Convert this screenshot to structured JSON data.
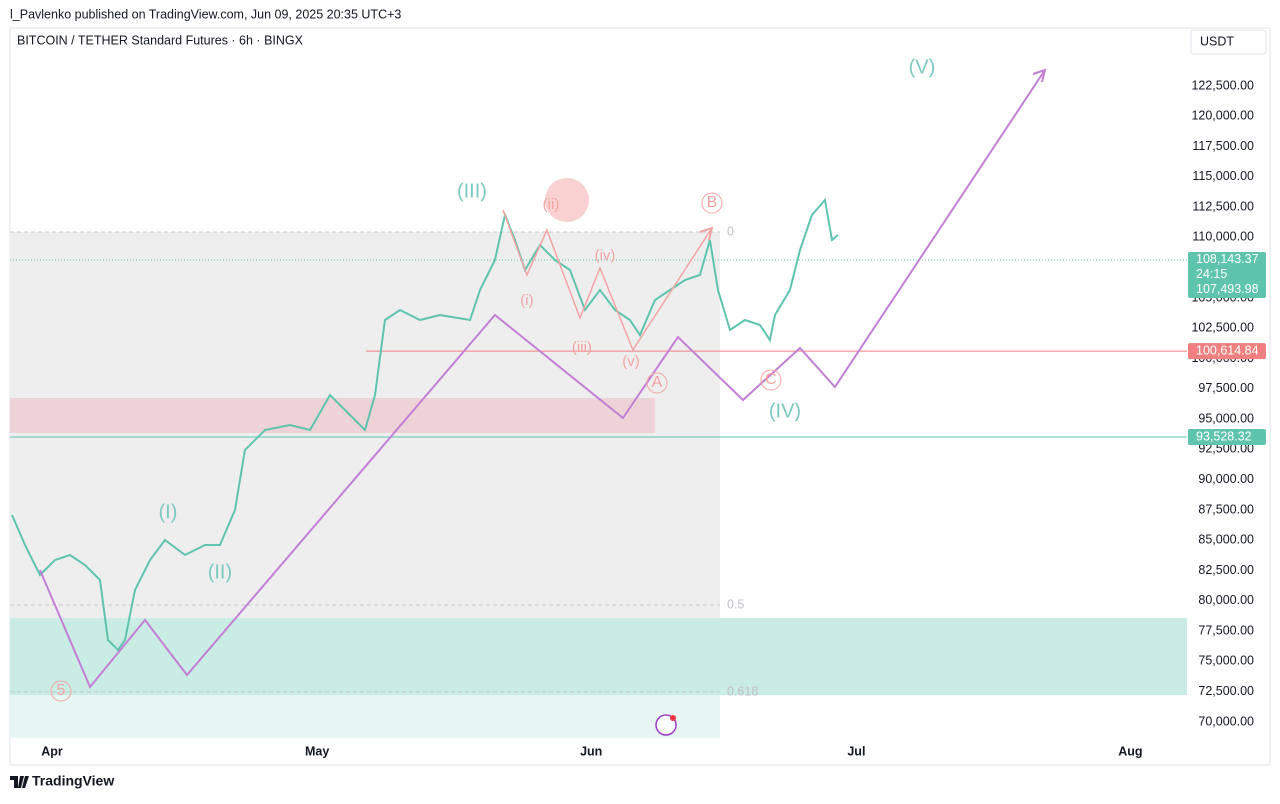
{
  "header": {
    "publisher": "l_Pavlenko published on TradingView.com, Jun 09, 2025 20:35 UTC+3",
    "footer": "TradingView"
  },
  "chart_data": {
    "type": "line",
    "title": "BITCOIN / TETHER Standard Futures · 6h · BINGX",
    "y_unit": "USDT",
    "xlim": [
      -4.75,
      128.4
    ],
    "ylim": [
      68680,
      127290
    ],
    "xticks": [
      {
        "value": 0,
        "label": "Apr"
      },
      {
        "value": 30,
        "label": "May"
      },
      {
        "value": 61,
        "label": "Jun"
      },
      {
        "value": 91,
        "label": "Jul"
      },
      {
        "value": 122,
        "label": "Aug"
      }
    ],
    "yticks": [
      {
        "value": 70000,
        "label": "70,000.00"
      },
      {
        "value": 72500,
        "label": "72,500.00"
      },
      {
        "value": 75000,
        "label": "75,000.00"
      },
      {
        "value": 77500,
        "label": "77,500.00"
      },
      {
        "value": 80000,
        "label": "80,000.00"
      },
      {
        "value": 82500,
        "label": "82,500.00"
      },
      {
        "value": 85000,
        "label": "85,000.00"
      },
      {
        "value": 87500,
        "label": "87,500.00"
      },
      {
        "value": 90000,
        "label": "90,000.00"
      },
      {
        "value": 92500,
        "label": "92,500.00"
      },
      {
        "value": 95000,
        "label": "95,000.00"
      },
      {
        "value": 97500,
        "label": "97,500.00"
      },
      {
        "value": 100000,
        "label": "100,000.00"
      },
      {
        "value": 102500,
        "label": "102,500.00"
      },
      {
        "value": 105000,
        "label": "105,000.00"
      },
      {
        "value": 107500,
        "label": "107,500.00"
      },
      {
        "value": 110000,
        "label": "110,000.00"
      },
      {
        "value": 112500,
        "label": "112,500.00"
      },
      {
        "value": 115000,
        "label": "115,000.00"
      },
      {
        "value": 117500,
        "label": "117,500.00"
      },
      {
        "value": 120000,
        "label": "120,000.00"
      },
      {
        "value": 122500,
        "label": "122,500.00"
      }
    ],
    "series": [
      {
        "name": "BTCUSDT",
        "color": "#5fc4ad",
        "x": [
          -4.52,
          -3.05,
          -1.36,
          0.34,
          2.04,
          3.73,
          5.43,
          6.33,
          7.47,
          8.26,
          9.39,
          11.09,
          12.78,
          15.05,
          17.31,
          19.0,
          20.7,
          21.83,
          24.1,
          26.92,
          29.19,
          31.45,
          33.71,
          35.41,
          36.54,
          37.67,
          39.37,
          41.63,
          43.89,
          47.29,
          48.42,
          50.11,
          51.24,
          52.38,
          53.51,
          55.2,
          56.9,
          58.6,
          60.29,
          61.99,
          63.69,
          65.38,
          66.52,
          68.21,
          69.91,
          71.61,
          73.3,
          74.43,
          75.34,
          76.7,
          78.39,
          80.09,
          81.22,
          81.79,
          83.48,
          84.62,
          85.97,
          87.44,
          88.24,
          88.91
        ],
        "values": [
          87087,
          84611,
          82135,
          83373,
          83786,
          82960,
          81722,
          76769,
          75944,
          76769,
          80896,
          83373,
          85024,
          83786,
          84611,
          84611,
          87500,
          92454,
          94105,
          94518,
          94105,
          96993,
          95342,
          94105,
          96993,
          103185,
          104011,
          103185,
          103598,
          103185,
          105661,
          108138,
          111852,
          109789,
          107313,
          109376,
          108138,
          107313,
          104011,
          105661,
          104011,
          103185,
          101947,
          104836,
          105661,
          106487,
          106900,
          109789,
          105661,
          102360,
          103185,
          102773,
          101534,
          103598,
          105661,
          108963,
          111852,
          113091,
          109789,
          110202
        ]
      }
    ],
    "price_lines": [
      {
        "value": 108143.37,
        "label": "108,143.37",
        "extra": [
          "24:15",
          "107,493.98"
        ],
        "color": "#5fc4ad",
        "style": "dotted"
      },
      {
        "value": 100614.84,
        "label": "100,614.84",
        "color": "#f08080",
        "style": "solid"
      },
      {
        "value": 93528.32,
        "label": "93,528.32",
        "color": "#5fc4ad",
        "style": "solid"
      }
    ],
    "zones": [
      {
        "x": [
          -4.75,
          75.57
        ],
        "y": [
          68680,
          110449
        ],
        "color": "#eeeeef"
      },
      {
        "x": [
          -4.75,
          68.2
        ],
        "y": [
          93858,
          96746
        ],
        "color": "#edd3d7"
      },
      {
        "x": [
          -4.75,
          128.4
        ],
        "y": [
          72229,
          78585
        ],
        "color": "#c9ece4"
      },
      {
        "x": [
          -4.75,
          75.57
        ],
        "y": [
          68680,
          72229
        ],
        "color": "#e6f6f2"
      }
    ],
    "fib_levels": [
      {
        "value": 110449,
        "label": "0"
      },
      {
        "value": 79658,
        "label": "0.5"
      },
      {
        "value": 72477,
        "label": "0.618"
      }
    ],
    "wave_path": {
      "color": "#c37fd6",
      "x": [
        -1.36,
        4.3,
        10.52,
        15.27,
        50.11,
        64.59,
        70.81,
        78.17,
        84.62,
        88.57,
        112.33
      ],
      "values": [
        82548,
        72889,
        78420,
        73880,
        103598,
        95095,
        101782,
        96581,
        100874,
        97654,
        123823
      ]
    },
    "sub_wave_path": {
      "color": "#f4a3a3",
      "x": [
        51.02,
        53.73,
        55.99,
        59.73,
        61.99,
        65.72,
        74.66
      ],
      "values": [
        112265,
        106900,
        110614,
        103350,
        107478,
        100709,
        110780
      ]
    },
    "annotations": [
      {
        "text": "(I)",
        "x": 13.12,
        "y": 87253,
        "color": "#7cc9c0"
      },
      {
        "text": "(II)",
        "x": 19.0,
        "y": 82300,
        "color": "#7cc9c0"
      },
      {
        "text": "(III)",
        "x": 47.51,
        "y": 113752,
        "color": "#7cc9c0"
      },
      {
        "text": "(IV)",
        "x": 82.92,
        "y": 95590,
        "color": "#7cc9c0"
      },
      {
        "text": "(V)",
        "x": 98.42,
        "y": 123988,
        "color": "#7cc9c0"
      },
      {
        "text": "5",
        "x": 1.02,
        "y": 72559,
        "color": "#f4a3a3",
        "circle": true
      },
      {
        "text": "(i)",
        "x": 53.73,
        "y": 104754,
        "color": "#f4a3a3"
      },
      {
        "text": "(ii)",
        "x": 56.45,
        "y": 112678,
        "color": "#f4a3a3"
      },
      {
        "text": "(iii)",
        "x": 59.95,
        "y": 100874,
        "color": "#f4a3a3"
      },
      {
        "text": "(iv)",
        "x": 62.56,
        "y": 108468,
        "color": "#f4a3a3"
      },
      {
        "text": "(v)",
        "x": 65.5,
        "y": 99718,
        "color": "#f4a3a3"
      },
      {
        "text": "A",
        "x": 68.44,
        "y": 97984,
        "color": "#f4a3a3",
        "circle": true
      },
      {
        "text": "B",
        "x": 74.66,
        "y": 112843,
        "color": "#f4a3a3",
        "circle": true
      },
      {
        "text": "C",
        "x": 81.33,
        "y": 98232,
        "color": "#f4a3a3",
        "circle": true
      }
    ]
  }
}
